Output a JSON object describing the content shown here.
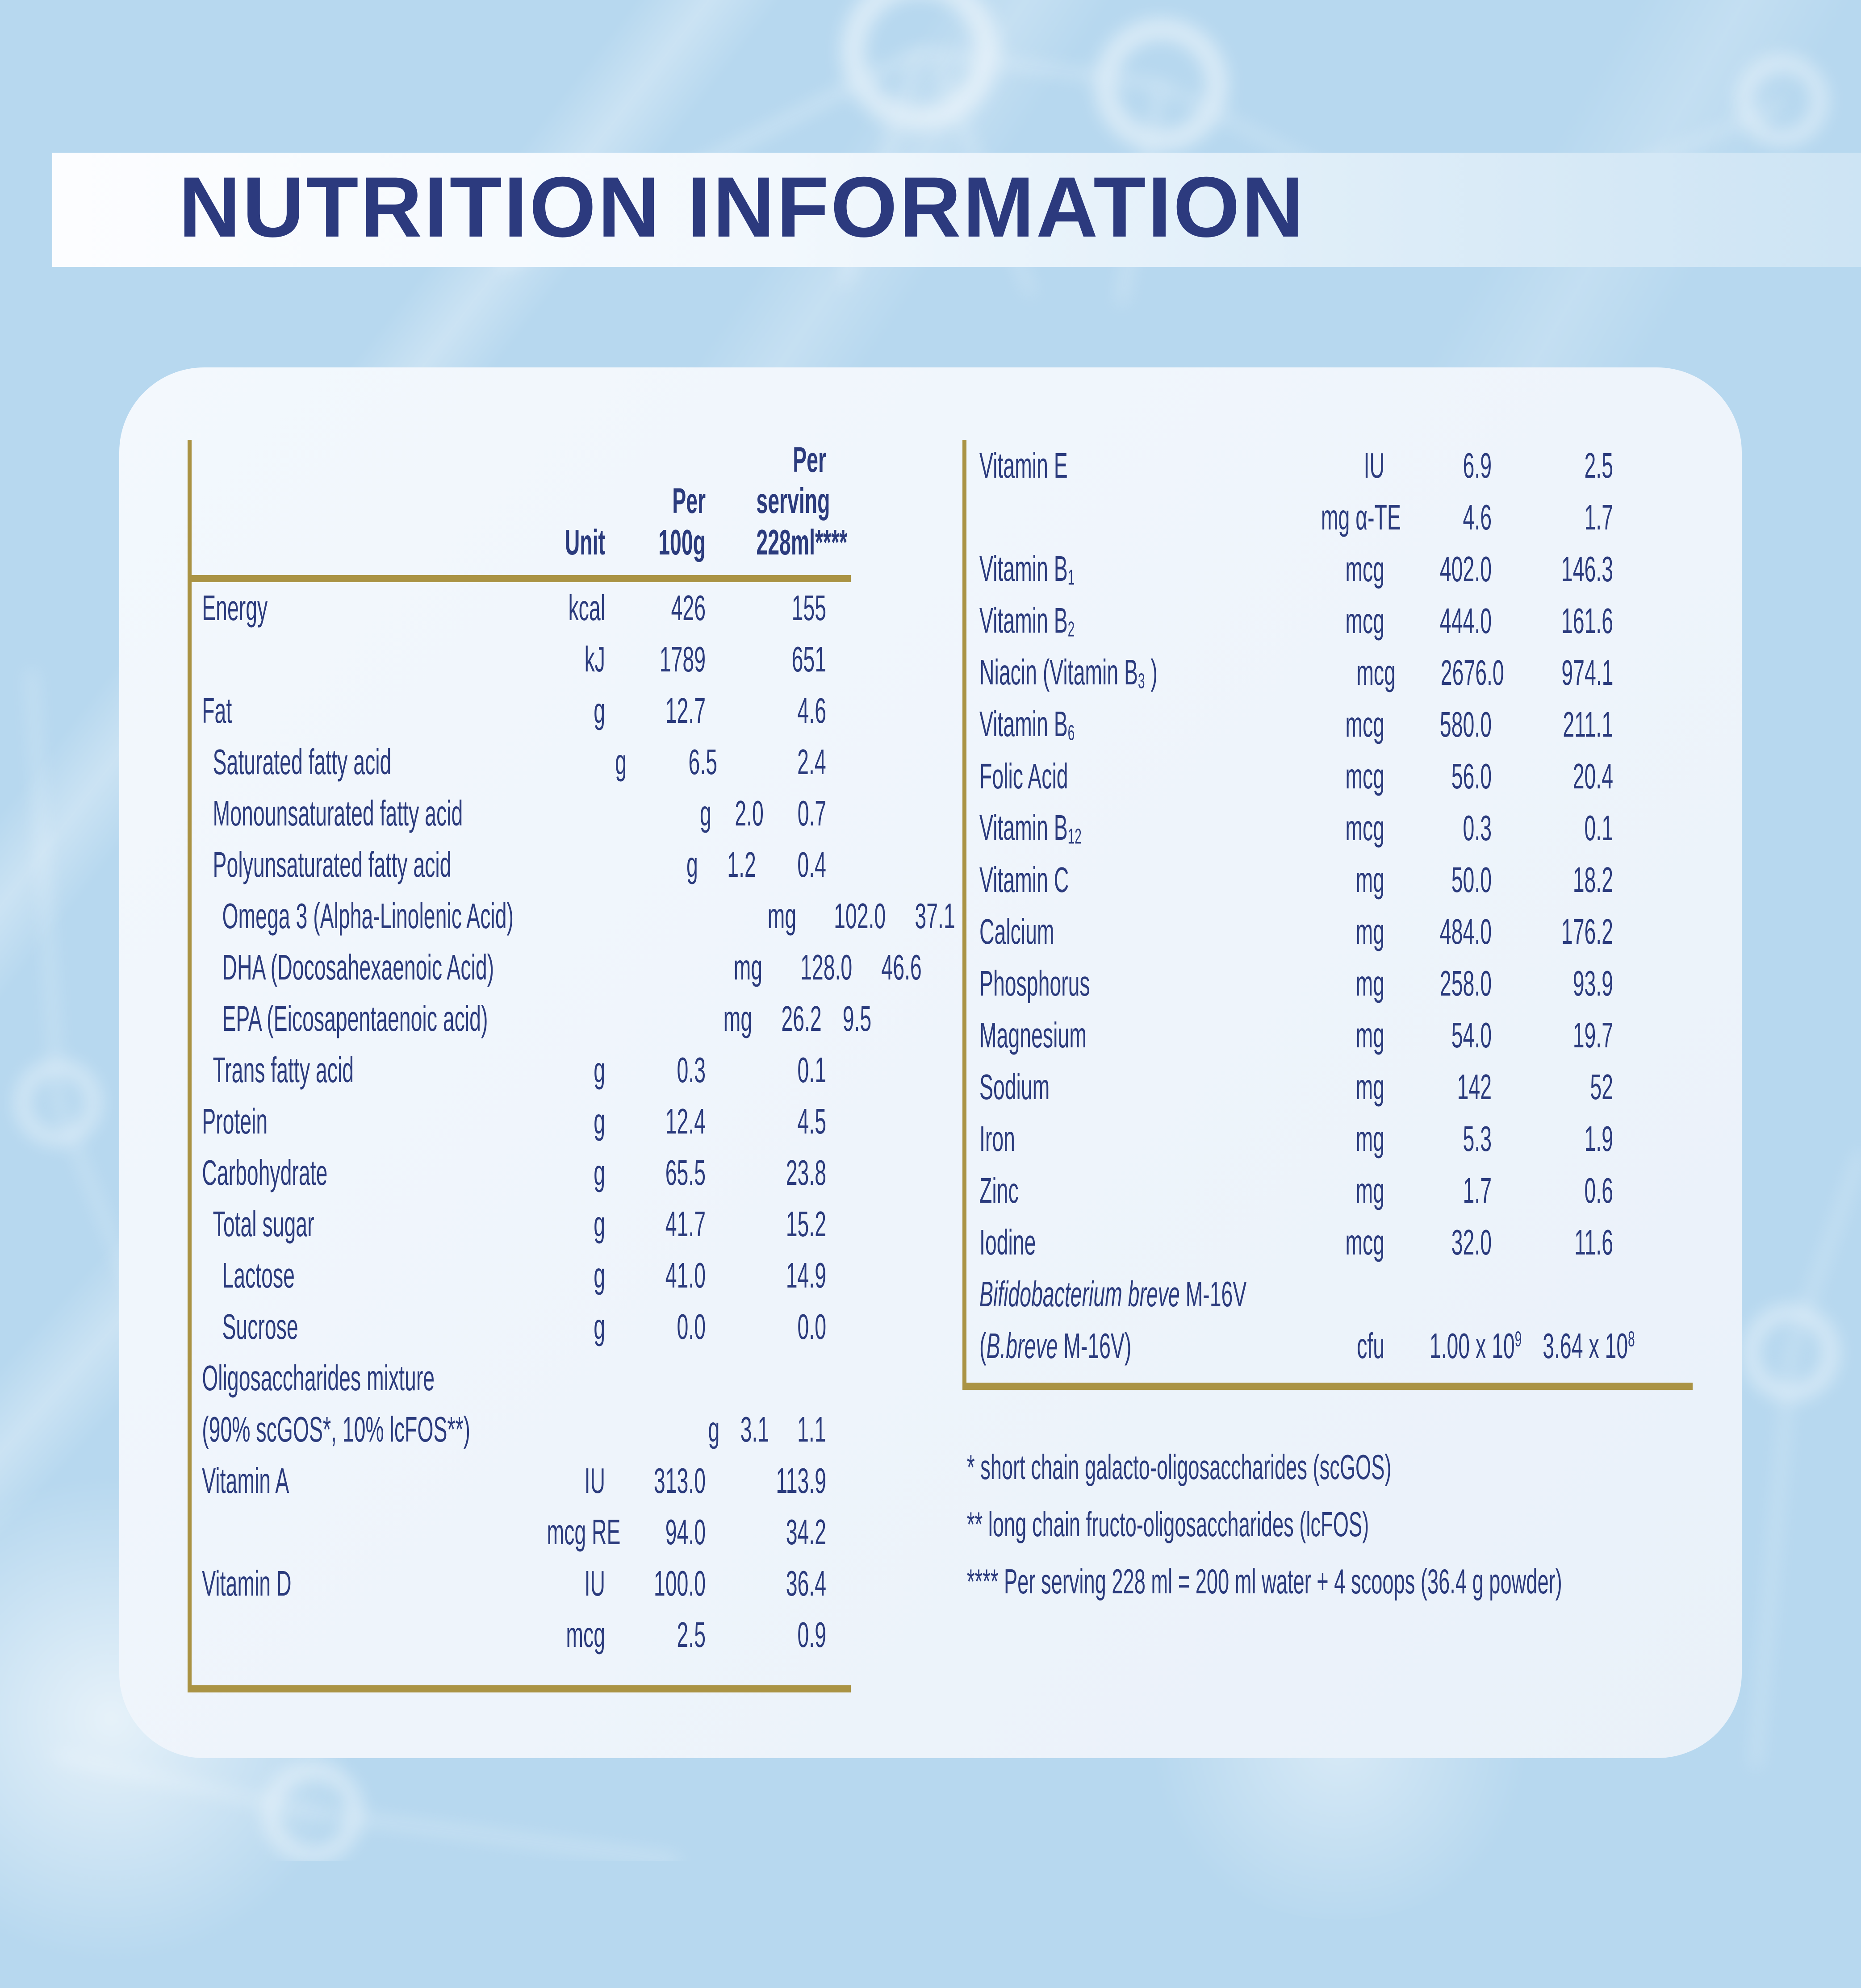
{
  "title": "NUTRITION INFORMATION",
  "colors": {
    "navy_text": "#2b3b7d",
    "title_navy": "#2c3a7e",
    "gold_rule": "#aa9344",
    "panel_background": "#eef4fb",
    "page_background": "#b7d8ef"
  },
  "left_table": {
    "header": {
      "unit": "Unit",
      "per_100g": [
        "Per",
        "100g"
      ],
      "per_serving": [
        "Per",
        "serving",
        "228ml****"
      ]
    },
    "rows": [
      {
        "label": "Energy",
        "indent": 0,
        "unit": "kcal",
        "per_100g": "426",
        "per_serving": "155"
      },
      {
        "label": "",
        "indent": 0,
        "unit": "kJ",
        "per_100g": "1789",
        "per_serving": "651"
      },
      {
        "label": "Fat",
        "indent": 0,
        "unit": "g",
        "per_100g": "12.7",
        "per_serving": "4.6"
      },
      {
        "label": "Saturated fatty acid",
        "indent": 1,
        "unit": "g",
        "per_100g": "6.5",
        "per_serving": "2.4"
      },
      {
        "label": "Monounsaturated fatty acid",
        "indent": 1,
        "unit": "g",
        "per_100g": "2.0",
        "per_serving": "0.7"
      },
      {
        "label": "Polyunsaturated fatty acid",
        "indent": 1,
        "unit": "g",
        "per_100g": "1.2",
        "per_serving": "0.4"
      },
      {
        "label": "Omega 3 (Alpha-Linolenic Acid)",
        "indent": 2,
        "unit": "mg",
        "per_100g": "102.0",
        "per_serving": "37.1"
      },
      {
        "label": "DHA (Docosahexaenoic Acid)",
        "indent": 2,
        "unit": "mg",
        "per_100g": "128.0",
        "per_serving": "46.6"
      },
      {
        "label": "EPA (Eicosapentaenoic acid)",
        "indent": 2,
        "unit": "mg",
        "per_100g": "26.2",
        "per_serving": "9.5"
      },
      {
        "label": "Trans fatty acid",
        "indent": 1,
        "unit": "g",
        "per_100g": "0.3",
        "per_serving": "0.1"
      },
      {
        "label": "Protein",
        "indent": 0,
        "unit": "g",
        "per_100g": "12.4",
        "per_serving": "4.5"
      },
      {
        "label": "Carbohydrate",
        "indent": 0,
        "unit": "g",
        "per_100g": "65.5",
        "per_serving": "23.8"
      },
      {
        "label": "Total sugar",
        "indent": 1,
        "unit": "g",
        "per_100g": "41.7",
        "per_serving": "15.2"
      },
      {
        "label": "Lactose",
        "indent": 2,
        "unit": "g",
        "per_100g": "41.0",
        "per_serving": "14.9"
      },
      {
        "label": "Sucrose",
        "indent": 2,
        "unit": "g",
        "per_100g": "0.0",
        "per_serving": "0.0"
      },
      {
        "label": "Oligosaccharides mixture",
        "indent": 0,
        "unit": "",
        "per_100g": "",
        "per_serving": ""
      },
      {
        "label": "(90% scGOS*, 10% lcFOS**)",
        "indent": 0,
        "unit": "g",
        "per_100g": "3.1",
        "per_serving": "1.1"
      },
      {
        "label": "Vitamin A",
        "indent": 0,
        "unit": "IU",
        "per_100g": "313.0",
        "per_serving": "113.9"
      },
      {
        "label": "",
        "indent": 0,
        "unit": "mcg RE",
        "per_100g": "94.0",
        "per_serving": "34.2"
      },
      {
        "label": "Vitamin D",
        "indent": 0,
        "unit": "IU",
        "per_100g": "100.0",
        "per_serving": "36.4"
      },
      {
        "label": "",
        "indent": 0,
        "unit": "mcg",
        "per_100g": "2.5",
        "per_serving": "0.9"
      }
    ]
  },
  "right_table": {
    "rows": [
      {
        "label": "Vitamin E",
        "indent": 0,
        "unit": "IU",
        "per_100g": "6.9",
        "per_serving": "2.5"
      },
      {
        "label": "",
        "indent": 0,
        "unit": "mg α-TE",
        "per_100g": "4.6",
        "per_serving": "1.7"
      },
      {
        "label": "Vitamin B_{1}",
        "indent": 0,
        "unit": "mcg",
        "per_100g": "402.0",
        "per_serving": "146.3"
      },
      {
        "label": "Vitamin B_{2}",
        "indent": 0,
        "unit": "mcg",
        "per_100g": "444.0",
        "per_serving": "161.6"
      },
      {
        "label": "Niacin (Vitamin B_{3} )",
        "indent": 0,
        "unit": "mcg",
        "per_100g": "2676.0",
        "per_serving": "974.1"
      },
      {
        "label": "Vitamin B_{6}",
        "indent": 0,
        "unit": "mcg",
        "per_100g": "580.0",
        "per_serving": "211.1"
      },
      {
        "label": "Folic Acid",
        "indent": 0,
        "unit": "mcg",
        "per_100g": "56.0",
        "per_serving": "20.4"
      },
      {
        "label": "Vitamin B_{12}",
        "indent": 0,
        "unit": "mcg",
        "per_100g": "0.3",
        "per_serving": "0.1"
      },
      {
        "label": "Vitamin C",
        "indent": 0,
        "unit": "mg",
        "per_100g": "50.0",
        "per_serving": "18.2"
      },
      {
        "label": "Calcium",
        "indent": 0,
        "unit": "mg",
        "per_100g": "484.0",
        "per_serving": "176.2"
      },
      {
        "label": "Phosphorus",
        "indent": 0,
        "unit": "mg",
        "per_100g": "258.0",
        "per_serving": "93.9"
      },
      {
        "label": "Magnesium",
        "indent": 0,
        "unit": "mg",
        "per_100g": "54.0",
        "per_serving": "19.7"
      },
      {
        "label": "Sodium",
        "indent": 0,
        "unit": "mg",
        "per_100g": "142",
        "per_serving": "52"
      },
      {
        "label": "Iron",
        "indent": 0,
        "unit": "mg",
        "per_100g": "5.3",
        "per_serving": "1.9"
      },
      {
        "label": "Zinc",
        "indent": 0,
        "unit": "mg",
        "per_100g": "1.7",
        "per_serving": "0.6"
      },
      {
        "label": "Iodine",
        "indent": 0,
        "unit": "mcg",
        "per_100g": "32.0",
        "per_serving": "11.6"
      },
      {
        "label": "{i}Bifidobacterium breve{/i} M-16V",
        "indent": 0,
        "unit": "",
        "per_100g": "",
        "per_serving": ""
      },
      {
        "label": "({i}B.breve{/i} M-16V)",
        "indent": 0,
        "unit": "cfu",
        "per_100g": "1.00 x 10^{9}",
        "per_serving": "3.64 x 10^{8}"
      }
    ]
  },
  "footnotes": [
    "* short chain galacto-oligosaccharides (scGOS)",
    "** long chain fructo-oligosaccharides (lcFOS)",
    "**** Per serving 228 ml = 200 ml water + 4 scoops (36.4 g powder)"
  ]
}
